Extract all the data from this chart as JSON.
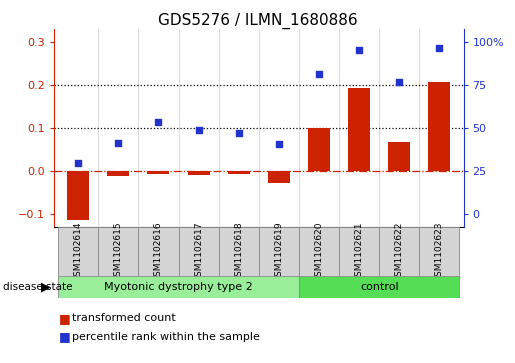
{
  "title": "GDS5276 / ILMN_1680886",
  "samples": [
    "GSM1102614",
    "GSM1102615",
    "GSM1102616",
    "GSM1102617",
    "GSM1102618",
    "GSM1102619",
    "GSM1102620",
    "GSM1102621",
    "GSM1102622",
    "GSM1102623"
  ],
  "transformed_count": [
    -0.115,
    -0.012,
    -0.008,
    -0.01,
    -0.008,
    -0.028,
    0.1,
    0.192,
    0.068,
    0.208
  ],
  "percentile_rank_left": [
    0.018,
    0.065,
    0.115,
    0.096,
    0.088,
    0.062,
    0.225,
    0.282,
    0.207,
    0.285
  ],
  "bar_color": "#cc2200",
  "dot_color": "#2233cc",
  "groups": [
    {
      "label": "Myotonic dystrophy type 2",
      "start": 0,
      "end": 6,
      "color": "#99ee99"
    },
    {
      "label": "control",
      "start": 6,
      "end": 10,
      "color": "#55dd55"
    }
  ],
  "ylim_left": [
    -0.13,
    0.33
  ],
  "yticks_left": [
    -0.1,
    0.0,
    0.1,
    0.2,
    0.3
  ],
  "yticks_right_vals": [
    -0.1,
    0.0,
    0.1,
    0.2,
    0.3
  ],
  "ytick_right_labels": [
    "0",
    "25",
    "50",
    "75",
    "100%"
  ],
  "hlines": [
    0.1,
    0.2
  ],
  "zero_line_color": "#cc2200",
  "tick_fontsize": 8,
  "title_fontsize": 11,
  "legend_fontsize": 8,
  "disease_state_fontsize": 8,
  "sample_fontsize": 6.5
}
